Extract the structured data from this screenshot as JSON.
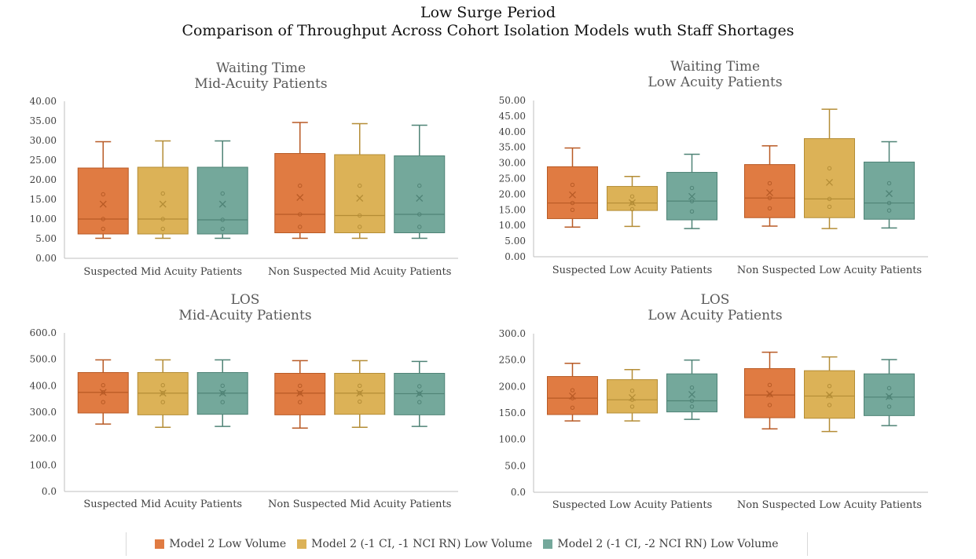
{
  "title": {
    "line1": "Low Surge Period",
    "line2": "Comparison of Throughput Across Cohort Isolation Models wuth Staff Shortages"
  },
  "colors": {
    "series": [
      "#e07b42",
      "#dcb257",
      "#74a89b"
    ],
    "stroke": [
      "#b85a25",
      "#b48d36",
      "#4f8376"
    ],
    "axis": "#bfbfbf",
    "text": "#404040"
  },
  "legend": [
    {
      "label": "Model 2 Low Volume"
    },
    {
      "label": "Model 2 (-1 CI, -1 NCI RN)  Low Volume"
    },
    {
      "label": "Model 2 (-1 CI, -2 NCI RN)  Low Volume"
    }
  ],
  "chart_data": [
    {
      "type": "box",
      "title": [
        "Waiting Time",
        "Mid-Acuity Patients"
      ],
      "ylim": [
        0,
        40
      ],
      "yticks": [
        "0.00",
        "5.00",
        "10.00",
        "15.00",
        "20.00",
        "25.00",
        "30.00",
        "35.00",
        "40.00"
      ],
      "ytick_values": [
        0,
        5,
        10,
        15,
        20,
        25,
        30,
        35,
        40
      ],
      "categories": [
        "Suspected Mid Acuity Patients",
        "Non Suspected Mid Acuity Patients"
      ],
      "series": [
        {
          "name": "Model 2 Low Volume",
          "boxes": [
            {
              "min": 5.1,
              "q1": 6.2,
              "median": 10.0,
              "q3": 23.0,
              "max": 29.7,
              "mean": 13.8,
              "points": [
                7.5,
                10,
                16.3
              ]
            },
            {
              "min": 5.1,
              "q1": 6.5,
              "median": 11.2,
              "q3": 26.7,
              "max": 34.6,
              "mean": 15.5,
              "points": [
                8,
                11.2,
                18.5
              ]
            }
          ]
        },
        {
          "name": "Model 2 (-1 CI, -1 NCI RN)  Low Volume",
          "boxes": [
            {
              "min": 5.1,
              "q1": 6.2,
              "median": 10.0,
              "q3": 23.2,
              "max": 29.9,
              "mean": 13.8,
              "points": [
                7.5,
                10,
                16.5
              ]
            },
            {
              "min": 5.1,
              "q1": 6.5,
              "median": 10.9,
              "q3": 26.4,
              "max": 34.3,
              "mean": 15.3,
              "points": [
                8,
                10.9,
                18.5
              ]
            }
          ]
        },
        {
          "name": "Model 2 (-1 CI, -2 NCI RN)  Low Volume",
          "boxes": [
            {
              "min": 5.1,
              "q1": 6.2,
              "median": 9.8,
              "q3": 23.2,
              "max": 29.9,
              "mean": 13.8,
              "points": [
                7.5,
                9.8,
                16.5
              ]
            },
            {
              "min": 5.1,
              "q1": 6.5,
              "median": 11.2,
              "q3": 26.1,
              "max": 33.9,
              "mean": 15.3,
              "points": [
                8,
                11.2,
                18.5
              ]
            }
          ]
        }
      ]
    },
    {
      "type": "box",
      "title": [
        "Waiting Time",
        "Low Acuity Patients"
      ],
      "ylim": [
        0,
        50
      ],
      "yticks": [
        "0.00",
        "5.00",
        "10.00",
        "15.00",
        "20.00",
        "25.00",
        "30.00",
        "35.00",
        "40.00",
        "45.00",
        "50.00"
      ],
      "ytick_values": [
        0,
        5,
        10,
        15,
        20,
        25,
        30,
        35,
        40,
        45,
        50
      ],
      "categories": [
        "Suspected Low Acuity Patients",
        "Non Suspected Low Acuity Patients"
      ],
      "series": [
        {
          "name": "Model 2 Low Volume",
          "boxes": [
            {
              "min": 9.5,
              "q1": 12.2,
              "median": 17.2,
              "q3": 28.8,
              "max": 34.8,
              "mean": 19.8,
              "points": [
                15,
                17.2,
                23
              ]
            },
            {
              "min": 9.8,
              "q1": 12.5,
              "median": 18.8,
              "q3": 29.5,
              "max": 35.5,
              "mean": 20.5,
              "points": [
                15.5,
                18.8,
                23.5
              ]
            }
          ]
        },
        {
          "name": "Model 2 (-1 CI, -1 NCI RN)  Low Volume",
          "boxes": [
            {
              "min": 9.7,
              "q1": 14.8,
              "median": 17.2,
              "q3": 22.5,
              "max": 25.7,
              "mean": 17.3,
              "points": [
                15.2,
                17.2,
                19.3
              ]
            },
            {
              "min": 9.0,
              "q1": 12.5,
              "median": 18.5,
              "q3": 37.8,
              "max": 47.2,
              "mean": 23.8,
              "points": [
                16,
                18.5,
                28.3
              ]
            }
          ]
        },
        {
          "name": "Model 2 (-1 CI, -2 NCI RN)  Low Volume",
          "boxes": [
            {
              "min": 9.0,
              "q1": 11.8,
              "median": 17.8,
              "q3": 27.0,
              "max": 32.8,
              "mean": 19.3,
              "points": [
                14.5,
                17.8,
                22
              ]
            },
            {
              "min": 9.2,
              "q1": 12.0,
              "median": 17.2,
              "q3": 30.3,
              "max": 36.8,
              "mean": 20.2,
              "points": [
                14.8,
                17.2,
                23.5
              ]
            }
          ]
        }
      ]
    },
    {
      "type": "box",
      "title": [
        "LOS",
        "Mid-Acuity Patients"
      ],
      "ylim": [
        0,
        600
      ],
      "yticks": [
        "0.0",
        "100.0",
        "200.0",
        "300.0",
        "400.0",
        "500.0",
        "600.0"
      ],
      "ytick_values": [
        0,
        100,
        200,
        300,
        400,
        500,
        600
      ],
      "categories": [
        "Suspected Mid Acuity Patients",
        "Non Suspected Mid Acuity Patients"
      ],
      "series": [
        {
          "name": "Model 2 Low Volume",
          "boxes": [
            {
              "min": 255,
              "q1": 297,
              "median": 375,
              "q3": 450,
              "max": 498,
              "mean": 375,
              "points": [
                338,
                375,
                402
              ]
            },
            {
              "min": 240,
              "q1": 290,
              "median": 372,
              "q3": 447,
              "max": 495,
              "mean": 372,
              "points": [
                338,
                372,
                400
              ]
            }
          ]
        },
        {
          "name": "Model 2 (-1 CI, -1 NCI RN)  Low Volume",
          "boxes": [
            {
              "min": 243,
              "q1": 290,
              "median": 372,
              "q3": 450,
              "max": 498,
              "mean": 372,
              "points": [
                338,
                372,
                402
              ]
            },
            {
              "min": 243,
              "q1": 292,
              "median": 372,
              "q3": 447,
              "max": 495,
              "mean": 372,
              "points": [
                340,
                372,
                400
              ]
            }
          ]
        },
        {
          "name": "Model 2 (-1 CI, -2 NCI RN)  Low Volume",
          "boxes": [
            {
              "min": 246,
              "q1": 292,
              "median": 372,
              "q3": 450,
              "max": 498,
              "mean": 372,
              "points": [
                338,
                372,
                400
              ]
            },
            {
              "min": 246,
              "q1": 290,
              "median": 370,
              "q3": 447,
              "max": 492,
              "mean": 370,
              "points": [
                338,
                370,
                398
              ]
            }
          ]
        }
      ]
    },
    {
      "type": "box",
      "title": [
        "LOS",
        "Low Acuity Patients"
      ],
      "ylim": [
        0,
        300
      ],
      "yticks": [
        "0.0",
        "50.0",
        "100.0",
        "150.0",
        "200.0",
        "250.0",
        "300.0"
      ],
      "ytick_values": [
        0,
        50,
        100,
        150,
        200,
        250,
        300
      ],
      "categories": [
        "Suspected Low Acuity Patients",
        "Non Suspected Low Acuity Patients"
      ],
      "series": [
        {
          "name": "Model 2 Low Volume",
          "boxes": [
            {
              "min": 135,
              "q1": 147,
              "median": 178,
              "q3": 219,
              "max": 244,
              "mean": 182,
              "points": [
                160,
                178,
                193
              ]
            },
            {
              "min": 120,
              "q1": 141,
              "median": 184,
              "q3": 234,
              "max": 265,
              "mean": 186,
              "points": [
                165,
                184,
                203
              ]
            }
          ]
        },
        {
          "name": "Model 2 (-1 CI, -1 NCI RN)  Low Volume",
          "boxes": [
            {
              "min": 135,
              "q1": 150,
              "median": 175,
              "q3": 213,
              "max": 232,
              "mean": 179,
              "points": [
                162,
                175,
                192
              ]
            },
            {
              "min": 115,
              "q1": 140,
              "median": 182,
              "q3": 230,
              "max": 256,
              "mean": 184,
              "points": [
                165,
                182,
                201
              ]
            }
          ]
        },
        {
          "name": "Model 2 (-1 CI, -2 NCI RN)  Low Volume",
          "boxes": [
            {
              "min": 138,
              "q1": 152,
              "median": 173,
              "q3": 224,
              "max": 250,
              "mean": 185,
              "points": [
                162,
                173,
                198
              ]
            },
            {
              "min": 126,
              "q1": 145,
              "median": 180,
              "q3": 224,
              "max": 251,
              "mean": 181,
              "points": [
                162,
                180,
                197
              ]
            }
          ]
        }
      ]
    }
  ]
}
